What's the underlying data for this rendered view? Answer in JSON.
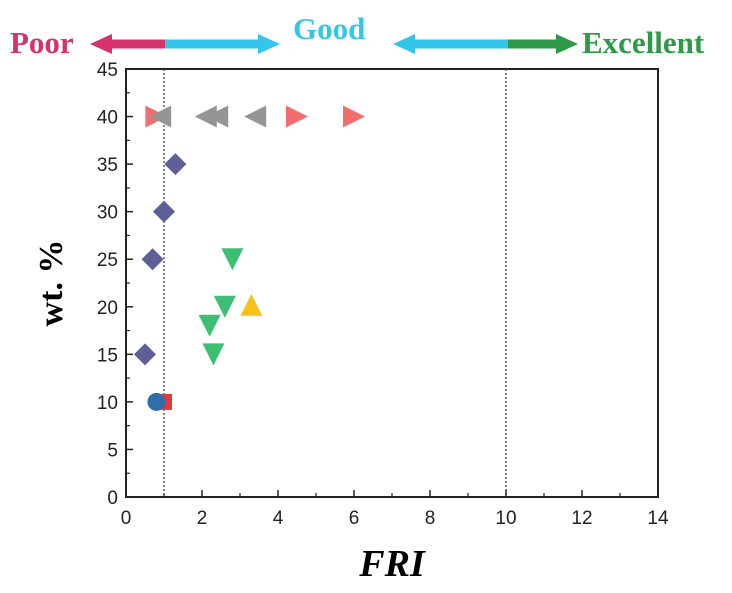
{
  "banner": {
    "poor_label": "Poor",
    "good_label": "Good",
    "excellent_label": "Excellent",
    "colors": {
      "poor": "#d6336c",
      "good": "#33c6ea",
      "excellent": "#2e9a47"
    }
  },
  "chart_data": {
    "type": "scatter",
    "xlabel": "FRI",
    "ylabel": "wt. %",
    "xlim": [
      0,
      14
    ],
    "ylim": [
      0,
      45
    ],
    "xticks": [
      0,
      2,
      4,
      6,
      8,
      10,
      12,
      14
    ],
    "yticks": [
      0,
      5,
      10,
      15,
      20,
      25,
      30,
      35,
      40,
      45
    ],
    "grid": false,
    "reference_lines_x": [
      1,
      10
    ],
    "series": [
      {
        "marker": "triangle-right",
        "color": "#f26d6d",
        "points": [
          [
            0.8,
            40
          ],
          [
            4.5,
            40
          ],
          [
            6.0,
            40
          ]
        ]
      },
      {
        "marker": "triangle-left",
        "color": "#959595",
        "points": [
          [
            0.9,
            40
          ],
          [
            2.1,
            40
          ],
          [
            2.4,
            40
          ],
          [
            3.4,
            40
          ]
        ]
      },
      {
        "marker": "diamond",
        "color": "#5f5f98",
        "points": [
          [
            1.3,
            35
          ],
          [
            1.0,
            30
          ],
          [
            0.7,
            25
          ],
          [
            0.5,
            15
          ]
        ]
      },
      {
        "marker": "triangle-down",
        "color": "#3dbf73",
        "points": [
          [
            2.8,
            25
          ],
          [
            2.6,
            20
          ],
          [
            2.2,
            18
          ],
          [
            2.3,
            15
          ]
        ]
      },
      {
        "marker": "triangle-up",
        "color": "#f5c21b",
        "points": [
          [
            3.3,
            20.2
          ]
        ]
      },
      {
        "marker": "square",
        "color": "#e23a3a",
        "points": [
          [
            1.0,
            10
          ]
        ]
      },
      {
        "marker": "circle",
        "color": "#2f6fa8",
        "points": [
          [
            0.8,
            10
          ]
        ]
      }
    ]
  }
}
